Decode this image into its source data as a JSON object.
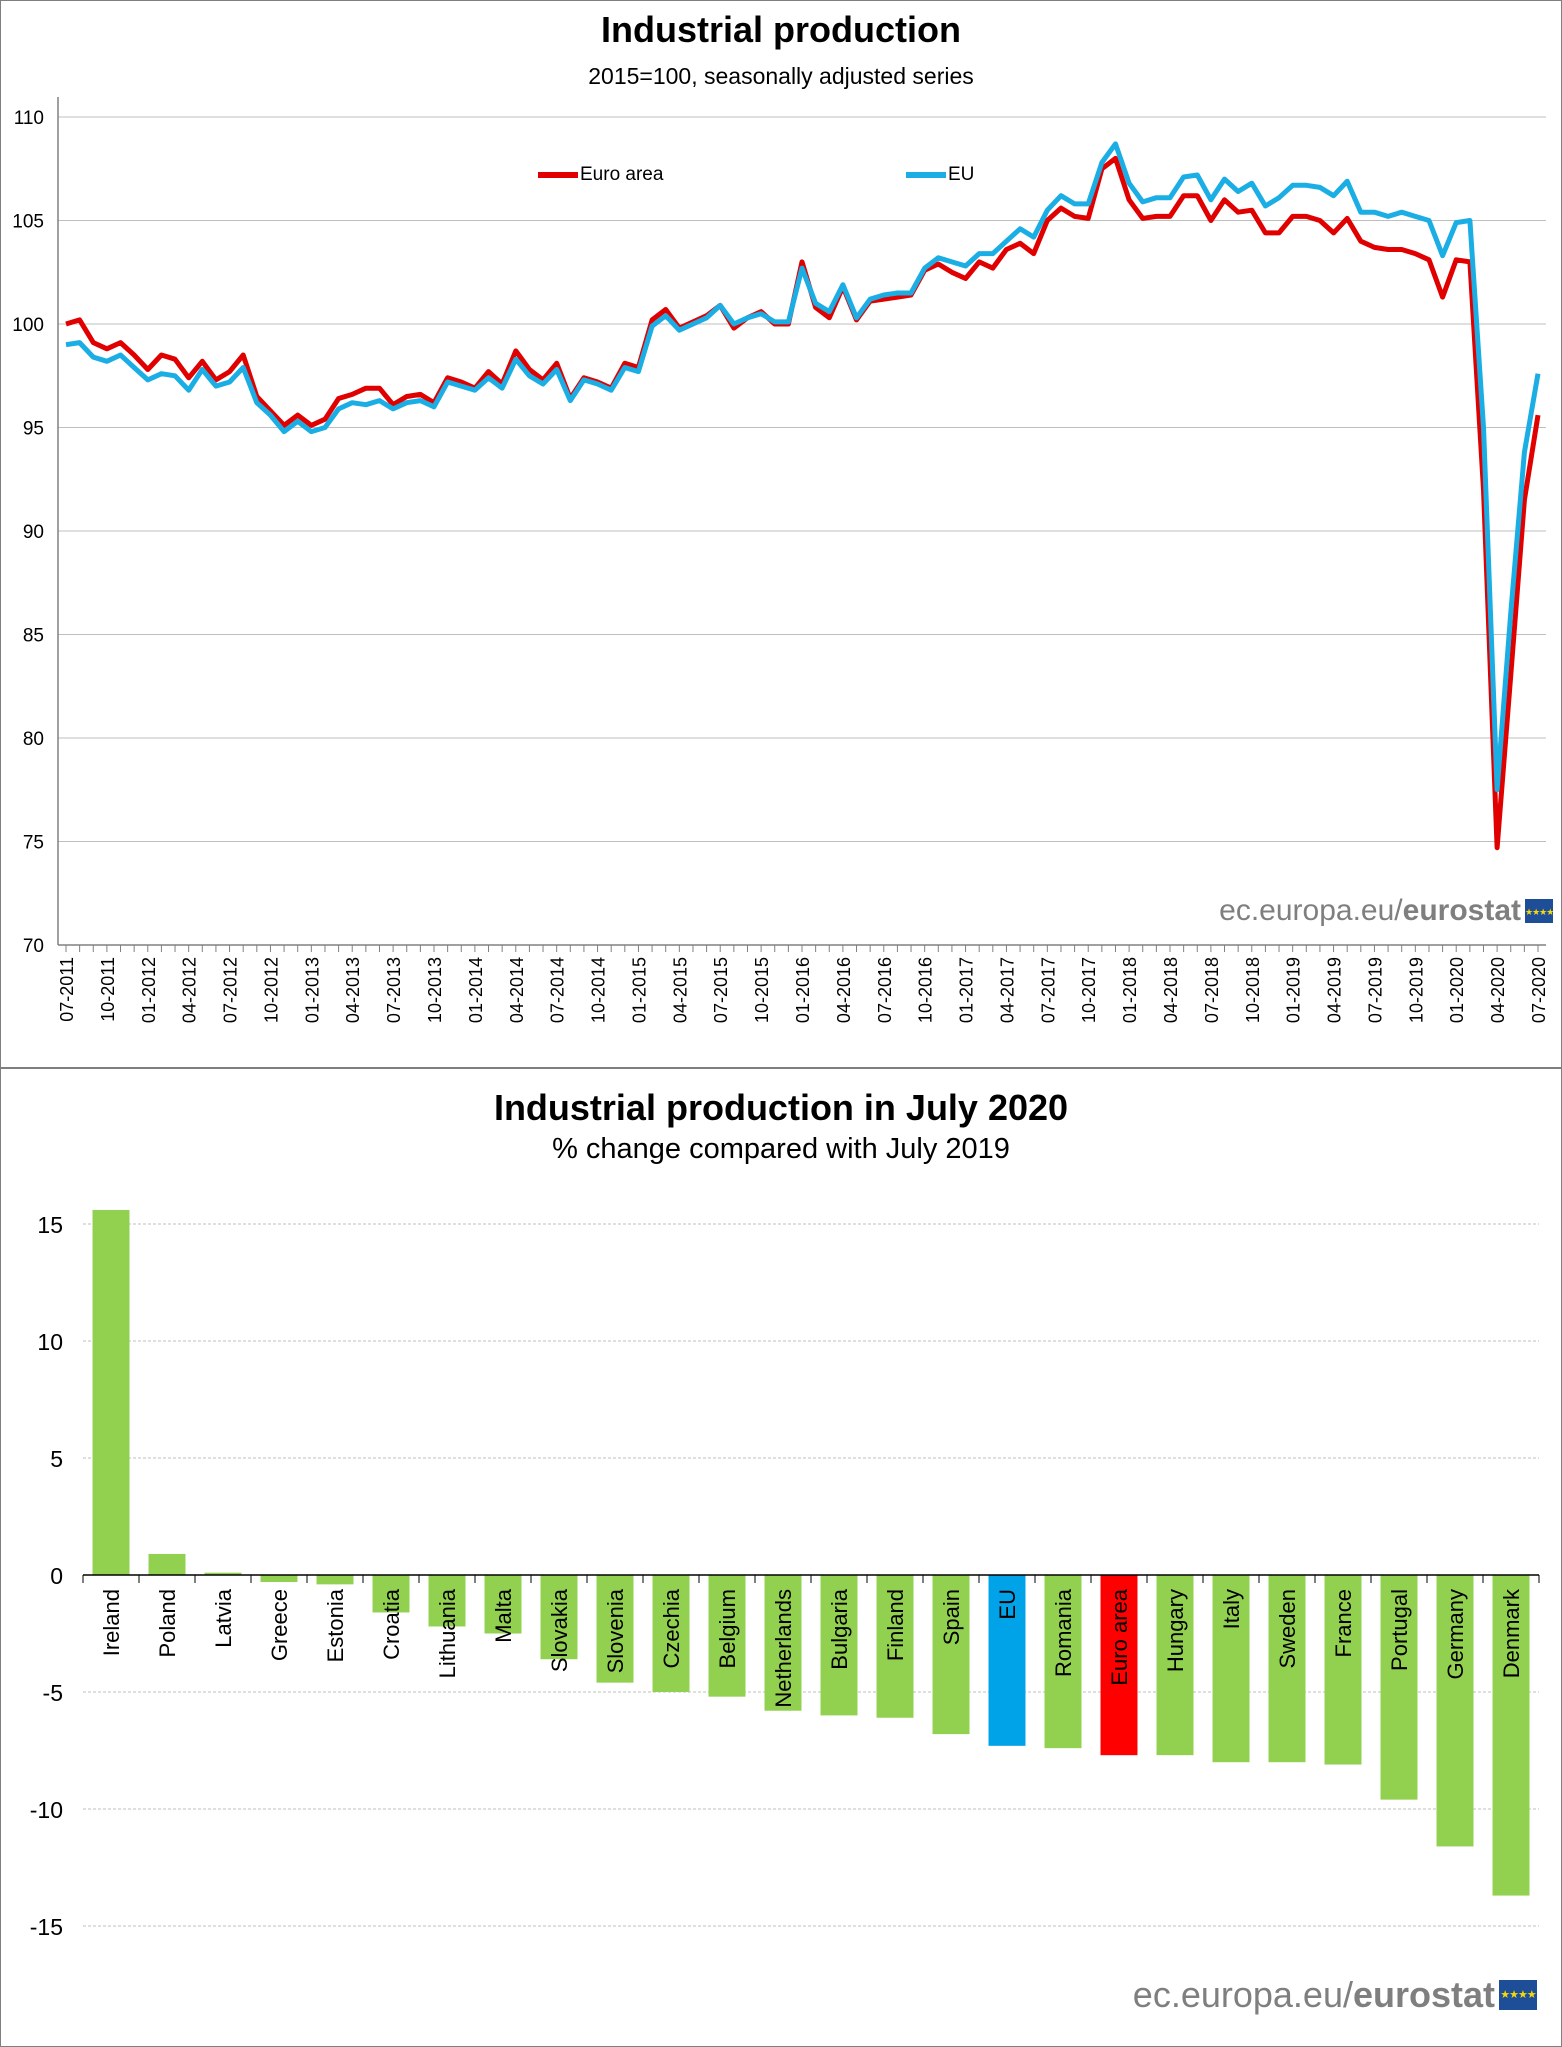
{
  "colors": {
    "euro_area": "#e00000",
    "eu": "#1aaee5",
    "bar_country": "#92d050",
    "bar_eu": "#00a2e8",
    "bar_euro_area": "#ff0000",
    "grid": "#bfbfbf"
  },
  "branding": {
    "site": "ec.europa.eu/",
    "name": "eurostat",
    "flag_icon": "eu-flag-icon"
  },
  "chart_data": [
    {
      "type": "line",
      "title": "Industrial production",
      "subtitle": "2015=100, seasonally adjusted series",
      "xlabel": "",
      "ylabel": "",
      "ylim": [
        70,
        110
      ],
      "yticks": [
        70,
        75,
        80,
        85,
        90,
        95,
        100,
        105,
        110
      ],
      "grid": true,
      "legend_placement": "top-left",
      "x_tick_labels": [
        "07-2011",
        "10-2011",
        "01-2012",
        "04-2012",
        "07-2012",
        "10-2012",
        "01-2013",
        "04-2013",
        "07-2013",
        "10-2013",
        "01-2014",
        "04-2014",
        "07-2014",
        "10-2014",
        "01-2015",
        "04-2015",
        "07-2015",
        "10-2015",
        "01-2016",
        "04-2016",
        "07-2016",
        "10-2016",
        "01-2017",
        "04-2017",
        "07-2017",
        "10-2017",
        "01-2018",
        "04-2018",
        "07-2018",
        "10-2018",
        "01-2019",
        "04-2019",
        "07-2019",
        "10-2019",
        "01-2020",
        "04-2020",
        "07-2020"
      ],
      "x_start": "07-2011",
      "x_end": "07-2020",
      "series": [
        {
          "name": "Euro area",
          "color_key": "euro_area",
          "values": [
            100.0,
            100.2,
            99.1,
            98.8,
            99.1,
            98.5,
            97.8,
            98.5,
            98.3,
            97.4,
            98.2,
            97.3,
            97.7,
            98.5,
            96.5,
            95.8,
            95.1,
            95.6,
            95.1,
            95.4,
            96.4,
            96.6,
            96.9,
            96.9,
            96.1,
            96.5,
            96.6,
            96.2,
            97.4,
            97.2,
            96.9,
            97.7,
            97.1,
            98.7,
            97.8,
            97.3,
            98.1,
            96.4,
            97.4,
            97.2,
            96.9,
            98.1,
            97.9,
            100.2,
            100.7,
            99.8,
            100.1,
            100.4,
            100.9,
            99.8,
            100.3,
            100.6,
            100.0,
            100.0,
            103.0,
            100.8,
            100.3,
            101.8,
            100.2,
            101.1,
            101.2,
            101.3,
            101.4,
            102.6,
            102.9,
            102.5,
            102.2,
            103.0,
            102.7,
            103.6,
            103.9,
            103.4,
            105.0,
            105.6,
            105.2,
            105.1,
            107.5,
            108.0,
            106.0,
            105.1,
            105.2,
            105.2,
            106.2,
            106.2,
            105.0,
            106.0,
            105.4,
            105.5,
            104.4,
            104.4,
            105.2,
            105.2,
            105.0,
            104.4,
            105.1,
            104.0,
            103.7,
            103.6,
            103.6,
            103.4,
            103.1,
            101.3,
            103.1,
            103.0,
            92.0,
            74.7,
            83.0,
            91.5,
            95.6
          ]
        },
        {
          "name": "EU",
          "color_key": "eu",
          "values": [
            99.0,
            99.1,
            98.4,
            98.2,
            98.5,
            97.9,
            97.3,
            97.6,
            97.5,
            96.8,
            97.8,
            97.0,
            97.2,
            97.9,
            96.2,
            95.6,
            94.8,
            95.3,
            94.8,
            95.0,
            95.9,
            96.2,
            96.1,
            96.3,
            95.9,
            96.2,
            96.3,
            96.0,
            97.2,
            97.0,
            96.8,
            97.4,
            96.9,
            98.3,
            97.5,
            97.1,
            97.8,
            96.3,
            97.3,
            97.1,
            96.8,
            97.9,
            97.7,
            99.9,
            100.4,
            99.7,
            100.0,
            100.3,
            100.9,
            100.0,
            100.3,
            100.5,
            100.1,
            100.1,
            102.7,
            101.0,
            100.6,
            101.9,
            100.3,
            101.2,
            101.4,
            101.5,
            101.5,
            102.7,
            103.2,
            103.0,
            102.8,
            103.4,
            103.4,
            104.0,
            104.6,
            104.2,
            105.5,
            106.2,
            105.8,
            105.8,
            107.8,
            108.7,
            106.8,
            105.9,
            106.1,
            106.1,
            107.1,
            107.2,
            106.0,
            107.0,
            106.4,
            106.8,
            105.7,
            106.1,
            106.7,
            106.7,
            106.6,
            106.2,
            106.9,
            105.4,
            105.4,
            105.2,
            105.4,
            105.2,
            105.0,
            103.3,
            104.9,
            105.0,
            95.0,
            77.5,
            86.0,
            93.8,
            97.6
          ]
        }
      ]
    },
    {
      "type": "bar",
      "title": "Industrial production in July 2020",
      "subtitle": "% change compared with July 2019",
      "xlabel": "",
      "ylabel": "",
      "ylim": [
        -15,
        15
      ],
      "yticks": [
        -15,
        -10,
        -5,
        0,
        5,
        10,
        15
      ],
      "grid": true,
      "categories": [
        "Ireland",
        "Poland",
        "Latvia",
        "Greece",
        "Estonia",
        "Croatia",
        "Lithuania",
        "Malta",
        "Slovakia",
        "Slovenia",
        "Czechia",
        "Belgium",
        "Netherlands",
        "Bulgaria",
        "Finland",
        "Spain",
        "EU",
        "Romania",
        "Euro area",
        "Hungary",
        "Italy",
        "Sweden",
        "France",
        "Portugal",
        "Germany",
        "Denmark"
      ],
      "values": [
        15.6,
        0.9,
        0.1,
        -0.3,
        -0.4,
        -1.6,
        -2.2,
        -2.5,
        -3.6,
        -4.6,
        -5.0,
        -5.2,
        -5.8,
        -6.0,
        -6.1,
        -6.8,
        -7.3,
        -7.4,
        -7.7,
        -7.7,
        -8.0,
        -8.0,
        -8.1,
        -9.6,
        -11.6,
        -13.7
      ],
      "highlight": {
        "EU": "bar_eu",
        "Euro area": "bar_euro_area"
      }
    }
  ]
}
